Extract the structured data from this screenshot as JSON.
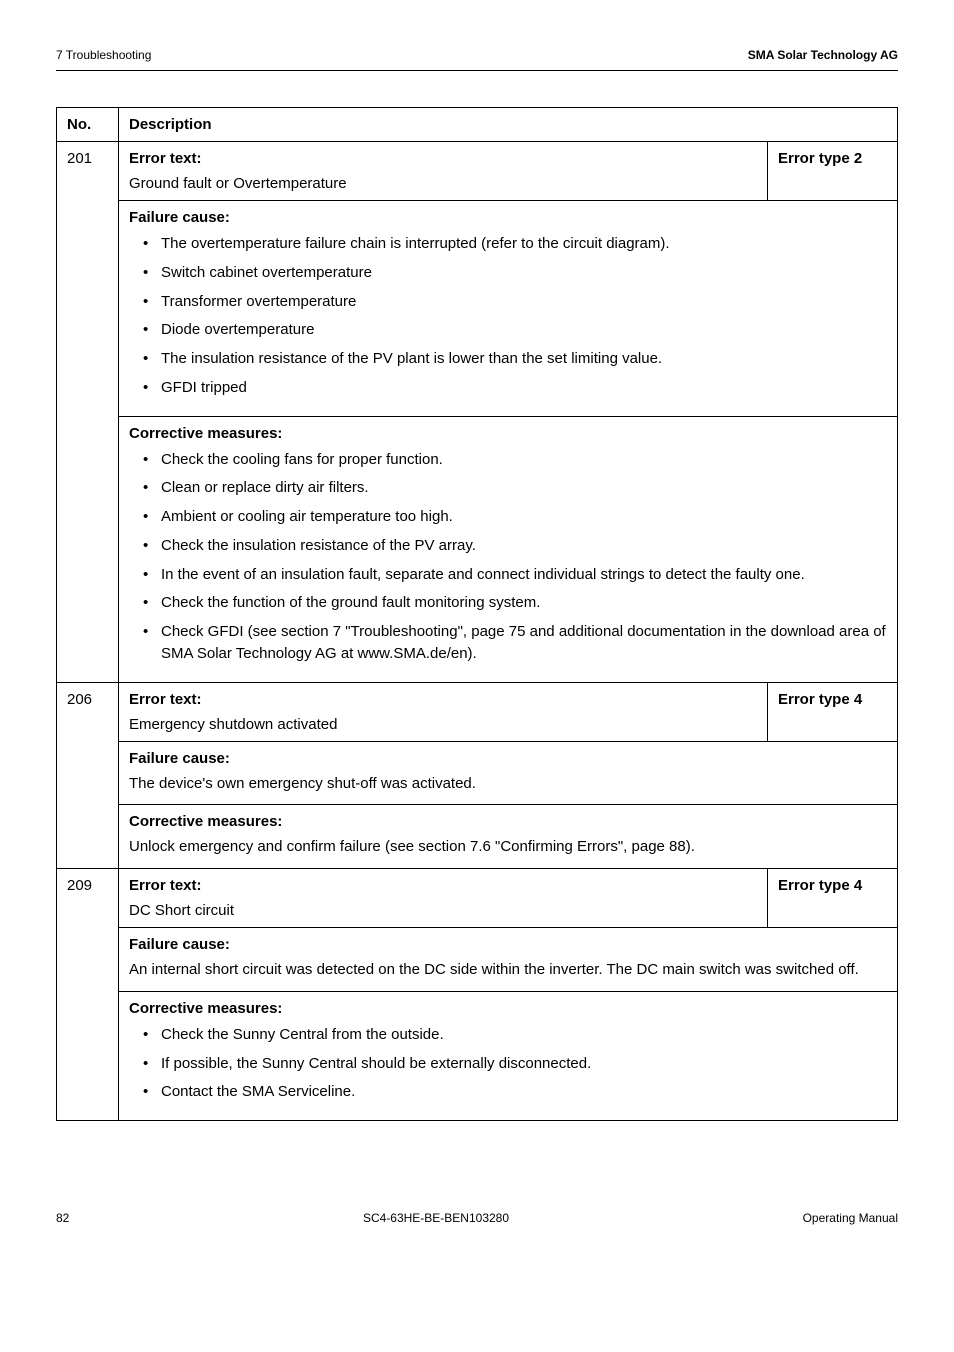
{
  "header": {
    "left": "7 Troubleshooting",
    "right": "SMA Solar Technology AG"
  },
  "table": {
    "columns": {
      "no": "No.",
      "desc": "Description"
    },
    "rows": [
      {
        "no": "201",
        "error_text_label": "Error text:",
        "error_text_value": "Ground fault or Overtemperature",
        "error_type": "Error type 2",
        "failure_cause_title": "Failure cause:",
        "failure_cause_items": [
          "The overtemperature failure chain is interrupted (refer to the circuit diagram).",
          "Switch cabinet overtemperature",
          "Transformer overtemperature",
          "Diode overtemperature",
          "The insulation resistance of the PV plant is lower than the set limiting value.",
          "GFDI tripped"
        ],
        "corrective_title": "Corrective measures:",
        "corrective_items": [
          "Check the cooling fans for proper function.",
          "Clean or replace dirty air filters.",
          "Ambient or cooling air temperature too high.",
          "Check the insulation resistance of the PV array.",
          "In the event of an insulation fault, separate and connect individual strings to detect the faulty one.",
          "Check the function of the ground fault monitoring system.",
          "Check GFDI (see section 7 \"Troubleshooting\", page 75 and additional documentation in the download area of SMA Solar Technology AG at www.SMA.de/en)."
        ]
      },
      {
        "no": "206",
        "error_text_label": "Error text:",
        "error_text_value": "Emergency shutdown activated",
        "error_type": "Error type 4",
        "failure_cause_title": "Failure cause:",
        "failure_cause_text": "The device's own emergency shut-off was activated.",
        "corrective_title": "Corrective measures:",
        "corrective_text": "Unlock emergency and confirm failure (see section 7.6 \"Confirming Errors\", page 88)."
      },
      {
        "no": "209",
        "error_text_label": "Error text:",
        "error_text_value": "DC Short circuit",
        "error_type": "Error type 4",
        "failure_cause_title": "Failure cause:",
        "failure_cause_text": "An internal short circuit was detected on the DC side within the inverter. The DC main switch was switched off.",
        "corrective_title": "Corrective measures:",
        "corrective_items": [
          "Check the Sunny Central from the outside.",
          "If possible, the Sunny Central should be externally disconnected.",
          "Contact the SMA Serviceline."
        ]
      }
    ]
  },
  "footer": {
    "page_no": "82",
    "doc_id": "SC4-63HE-BE-BEN103280",
    "doc_type": "Operating Manual"
  }
}
